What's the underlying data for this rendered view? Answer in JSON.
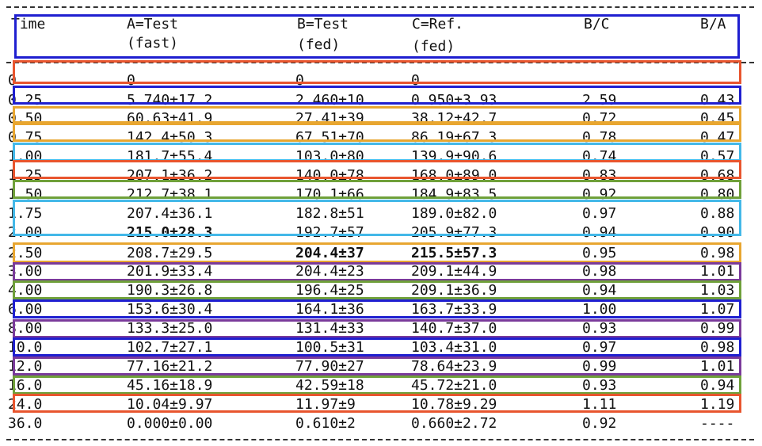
{
  "table": {
    "header": {
      "time": "Time",
      "a_line1": "A=Test",
      "a_line2": "(fast)",
      "b_line1": "B=Test",
      "b_line2": "(fed)",
      "c_line1": "C=Ref.",
      "c_line2": "(fed)",
      "bc": "B/C",
      "ba": "B/A"
    },
    "rows": [
      {
        "time": "0",
        "a": "0",
        "b": "0",
        "c": "0",
        "bc": "",
        "ba": ""
      },
      {
        "time": "0.25",
        "a": "5.740±17.2",
        "b": "2.460±10",
        "c": "0.950±3.93",
        "bc": "2.59",
        "ba": "0.43"
      },
      {
        "time": "0.50",
        "a": "60.63±41.9",
        "b": "27.41±39",
        "c": "38.12±42.7",
        "bc": "0.72",
        "ba": "0.45"
      },
      {
        "time": "0.75",
        "a": "142.4±50.3",
        "b": "67.51±70",
        "c": "86.19±67.3",
        "bc": "0.78",
        "ba": "0.47"
      },
      {
        "time": "1.00",
        "a": "181.7±55.4",
        "b": "103.0±80",
        "c": "139.9±90.6",
        "bc": "0.74",
        "ba": "0.57"
      },
      {
        "time": "1.25",
        "a": "207.1±36.2",
        "b": "140.0±78",
        "c": "168.0±89.0",
        "bc": "0.83",
        "ba": "0.68"
      },
      {
        "time": "1.50",
        "a": "212.7±38.1",
        "b": "170.1±66",
        "c": "184.9±83.5",
        "bc": "0.92",
        "ba": "0.80"
      },
      {
        "time": "1.75",
        "a": "207.4±36.1",
        "b": "182.8±51",
        "c": "189.0±82.0",
        "bc": "0.97",
        "ba": "0.88"
      },
      {
        "time": "2.00",
        "a": "215.0±28.3",
        "b": "192.7±57",
        "c": "205.9±77.3",
        "bc": "0.94",
        "ba": "0.90",
        "bold": "a"
      },
      {
        "time": "2.50",
        "a": "208.7±29.5",
        "b": "204.4±37",
        "c": "215.5±57.3",
        "bc": "0.95",
        "ba": "0.98",
        "bold": "bc"
      },
      {
        "time": "3.00",
        "a": "201.9±33.4",
        "b": "204.4±23",
        "c": "209.1±44.9",
        "bc": "0.98",
        "ba": "1.01"
      },
      {
        "time": "4.00",
        "a": "190.3±26.8",
        "b": "196.4±25",
        "c": "209.1±36.9",
        "bc": "0.94",
        "ba": "1.03"
      },
      {
        "time": "6.00",
        "a": "153.6±30.4",
        "b": "164.1±36",
        "c": "163.7±33.9",
        "bc": "1.00",
        "ba": "1.07"
      },
      {
        "time": "8.00",
        "a": "133.3±25.0",
        "b": "131.4±33",
        "c": "140.7±37.0",
        "bc": "0.93",
        "ba": "0.99"
      },
      {
        "time": "10.0",
        "a": "102.7±27.1",
        "b": "100.5±31",
        "c": "103.4±31.0",
        "bc": "0.97",
        "ba": "0.98"
      },
      {
        "time": "12.0",
        "a": "77.16±21.2",
        "b": "77.90±27",
        "c": "78.64±23.9",
        "bc": "0.99",
        "ba": "1.01"
      },
      {
        "time": "16.0",
        "a": "45.16±18.9",
        "b": "42.59±18",
        "c": "45.72±21.0",
        "bc": "0.93",
        "ba": "0.94"
      },
      {
        "time": "24.0",
        "a": "10.04±9.97",
        "b": "11.97±9",
        "c": "10.78±9.29",
        "bc": "1.11",
        "ba": "1.19"
      },
      {
        "time": "36.0",
        "a": "0.000±0.00",
        "b": "0.610±2",
        "c": "0.660±2.72",
        "bc": "0.92",
        "ba": "----"
      }
    ]
  },
  "highlight_colors": {
    "blue": "#1f1fd0",
    "red": "#e8552e",
    "orange": "#e8a630",
    "lightblue": "#43b8e8",
    "green": "#6fa03a",
    "purple": "#7a3a9a"
  },
  "highlights": [
    {
      "target": "header",
      "color": "blue"
    },
    {
      "target": "row-0",
      "color": "red"
    },
    {
      "target": "row-1",
      "color": "blue"
    },
    {
      "target": "row-2",
      "color": "orange"
    },
    {
      "target": "row-3",
      "color": "orange"
    },
    {
      "target": "row-4",
      "color": "lightblue"
    },
    {
      "target": "row-5",
      "color": "red"
    },
    {
      "target": "row-6",
      "color": "green"
    },
    {
      "target": "rows-7-8",
      "color": "lightblue"
    },
    {
      "target": "row-9",
      "color": "orange"
    },
    {
      "target": "row-10",
      "color": "purple"
    },
    {
      "target": "row-11",
      "color": "green"
    },
    {
      "target": "row-12",
      "color": "blue"
    },
    {
      "target": "row-13",
      "color": "purple"
    },
    {
      "target": "row-14",
      "color": "blue"
    },
    {
      "target": "row-15",
      "color": "purple"
    },
    {
      "target": "row-16",
      "color": "green"
    },
    {
      "target": "row-17",
      "color": "red"
    }
  ]
}
